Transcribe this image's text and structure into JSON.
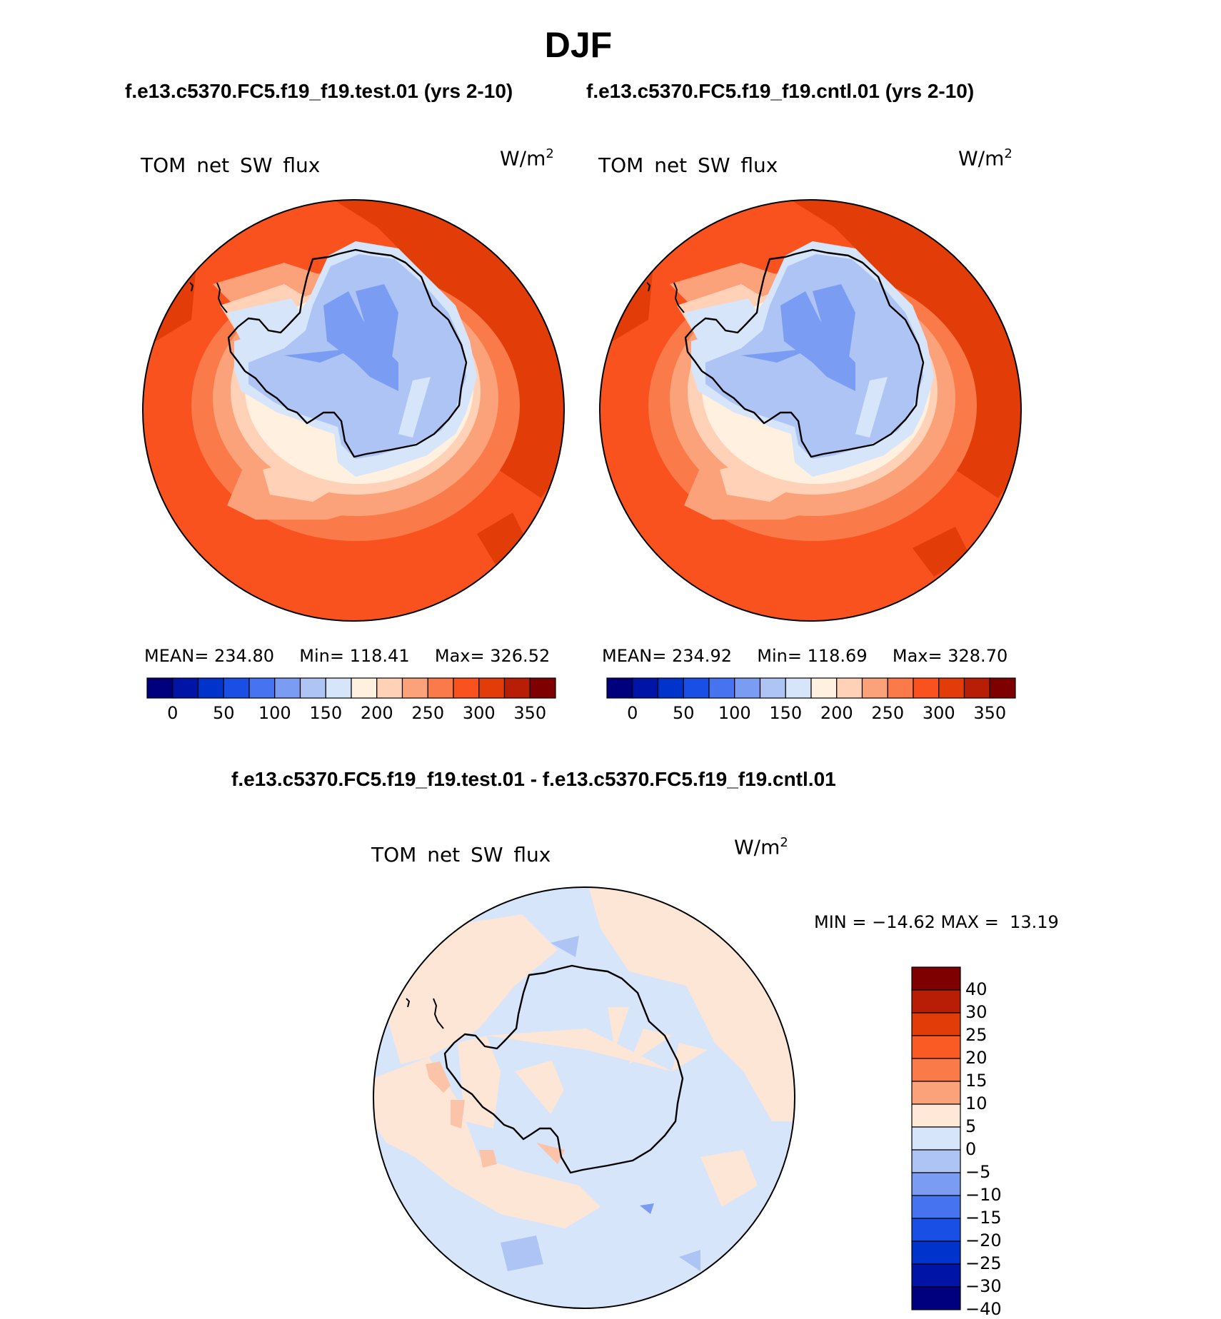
{
  "title": "DJF",
  "subtitles": {
    "test_top": "f.e13.c5370.FC5.f19_f19.test.01 (yrs 2-10)",
    "cntl_top": "f.e13.c5370.FC5.f19_f19.cntl.01 (yrs 2-10)",
    "diff": "f.e13.c5370.FC5.f19_f19.test.01 - f.e13.c5370.FC5.f19_f19.cntl.01"
  },
  "panels": [
    {
      "id": "test",
      "variable": "TOM net SW flux",
      "units_base": "W/m",
      "units_exp": "2",
      "stats": {
        "mean_label": "MEAN=",
        "mean": "234.80",
        "min_label": "Min=",
        "min": "118.41",
        "max_label": "Max=",
        "max": "326.52"
      }
    },
    {
      "id": "cntl",
      "variable": "TOM net SW flux",
      "units_base": "W/m",
      "units_exp": "2",
      "stats": {
        "mean_label": "MEAN=",
        "mean": "234.92",
        "min_label": "Min=",
        "min": "118.69",
        "max_label": "Max=",
        "max": "328.70"
      }
    }
  ],
  "diff_panel": {
    "variable": "TOM net SW flux",
    "units_base": "W/m",
    "units_exp": "2",
    "minmax_text": "MIN = −14.62 MAX =  13.19"
  },
  "colorbar_horizontal": {
    "colors": [
      "#00007f",
      "#0015a8",
      "#0032cc",
      "#1a4fe6",
      "#4673f0",
      "#7a9cf2",
      "#aec4f5",
      "#d6e5fa",
      "#fff0e0",
      "#ffd2b8",
      "#fca27a",
      "#fb7a4a",
      "#f9521e",
      "#e23c08",
      "#b81d05",
      "#7f0000"
    ],
    "labels": [
      "0",
      "50",
      "100",
      "150",
      "200",
      "250",
      "300",
      "350"
    ]
  },
  "colorbar_vertical": {
    "colors": [
      "#7f0000",
      "#b81d05",
      "#e23c08",
      "#fa5a24",
      "#fb7a4a",
      "#fca27a",
      "#ffe8d8",
      "#d6e5fa",
      "#aec4f5",
      "#7a9cf2",
      "#4673f0",
      "#1a4fe6",
      "#0032cc",
      "#0015a8",
      "#00007f"
    ],
    "labels": [
      "40",
      "30",
      "25",
      "20",
      "15",
      "10",
      "5",
      "0",
      "−5",
      "−10",
      "−15",
      "−20",
      "−25",
      "−30",
      "−40"
    ]
  }
}
